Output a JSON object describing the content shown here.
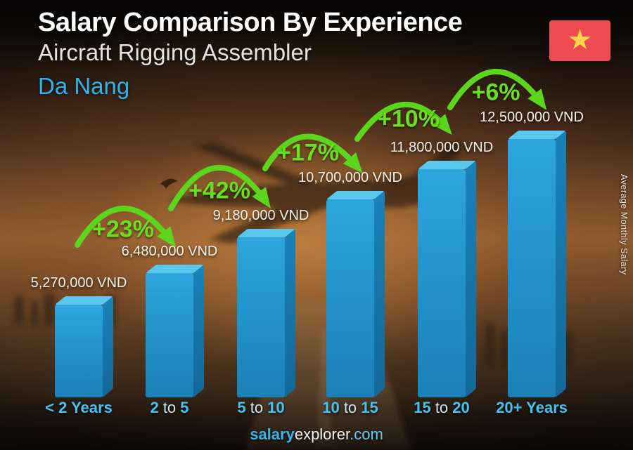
{
  "chart_data": {
    "type": "bar",
    "title": "Salary Comparison By Experience",
    "subtitle": "Aircraft Rigging Assembler",
    "city": "Da Nang",
    "ylabel": "Average Monthly Salary",
    "currency": "VND",
    "categories": [
      "< 2 Years",
      "2 to 5",
      "5 to 10",
      "10 to 15",
      "15 to 20",
      "20+ Years"
    ],
    "category_parts": [
      [
        {
          "text": "< 2 Years",
          "bold": true
        }
      ],
      [
        {
          "text": "2",
          "bold": true
        },
        {
          "text": " to ",
          "bold": false
        },
        {
          "text": "5",
          "bold": true
        }
      ],
      [
        {
          "text": "5",
          "bold": true
        },
        {
          "text": " to ",
          "bold": false
        },
        {
          "text": "10",
          "bold": true
        }
      ],
      [
        {
          "text": "10",
          "bold": true
        },
        {
          "text": " to ",
          "bold": false
        },
        {
          "text": "15",
          "bold": true
        }
      ],
      [
        {
          "text": "15",
          "bold": true
        },
        {
          "text": " to ",
          "bold": false
        },
        {
          "text": "20",
          "bold": true
        }
      ],
      [
        {
          "text": "20+ Years",
          "bold": true
        }
      ]
    ],
    "values": [
      5270000,
      6480000,
      9180000,
      10700000,
      11800000,
      12500000
    ],
    "value_labels": [
      "5,270,000 VND",
      "6,480,000 VND",
      "9,180,000 VND",
      "10,700,000 VND",
      "11,800,000 VND",
      "12,500,000 VND"
    ],
    "pct_changes": [
      "+23%",
      "+42%",
      "+17%",
      "+10%",
      "+6%"
    ],
    "legend": "none",
    "colors": {
      "bar_front": "#2394cd",
      "bar_top": "#5ac7ec",
      "bar_side": "#15689a",
      "arrow_green": "#5cd61d",
      "pct_green": "#68e01f",
      "accent_cyan": "#38b5ea",
      "flag_red": "#ee4a52",
      "flag_yellow": "#ffd54a"
    }
  },
  "footer": {
    "brand_bold": "salary",
    "brand_rest": "explorer",
    "domain": ".com"
  }
}
